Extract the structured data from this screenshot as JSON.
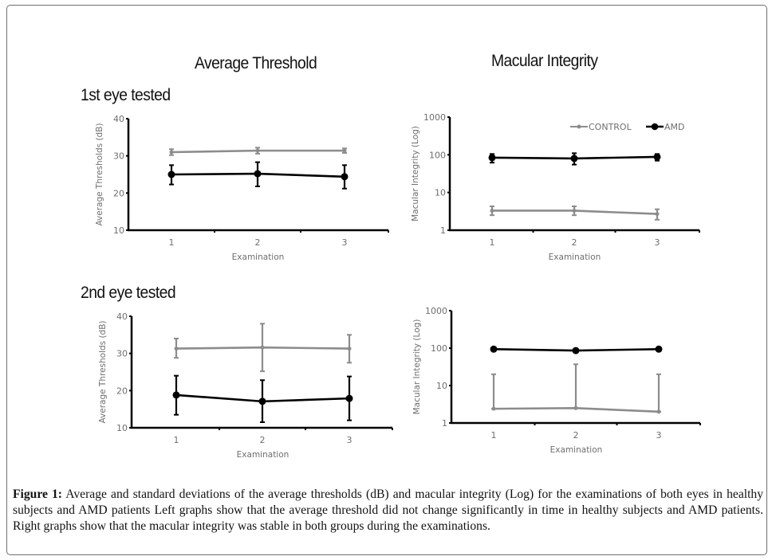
{
  "column_titles": [
    "Average Threshold",
    "Macular Integrity"
  ],
  "row_titles": [
    "1st eye tested",
    "2nd eye tested"
  ],
  "legend": {
    "items": [
      {
        "name": "CONTROL",
        "color": "#8c8c8c"
      },
      {
        "name": "AMD",
        "color": "#000000"
      }
    ]
  },
  "caption": {
    "label": "Figure 1:",
    "text": " Average and standard deviations of the average thresholds (dB) and macular integrity (Log) for the examinations of both eyes in healthy subjects and AMD patients Left graphs show that the average threshold did not change significantly in time in healthy subjects and AMD patients. Right graphs show that the macular integrity was stable in both groups during the examinations."
  },
  "chart_data": [
    {
      "id": "threshold-eye1",
      "type": "line",
      "title": "Average Threshold – 1st eye tested",
      "xlabel": "Examination",
      "ylabel": "Average Thresholds (dB)",
      "x": [
        1,
        2,
        3
      ],
      "xticks": [
        "1",
        "2",
        "3"
      ],
      "yscale": "linear",
      "ylim": [
        10,
        40
      ],
      "yticks": [
        "10",
        "20",
        "30",
        "40"
      ],
      "grid": false,
      "series": [
        {
          "name": "CONTROL",
          "color": "#8c8c8c",
          "values": [
            31.0,
            31.4,
            31.4
          ],
          "err_low": [
            30.2,
            30.6,
            30.8
          ],
          "err_high": [
            31.8,
            32.2,
            32.0
          ]
        },
        {
          "name": "AMD",
          "color": "#000000",
          "values": [
            25.0,
            25.2,
            24.4
          ],
          "err_low": [
            22.3,
            21.8,
            21.2
          ],
          "err_high": [
            27.5,
            28.3,
            27.5
          ]
        }
      ]
    },
    {
      "id": "integrity-eye1",
      "type": "line",
      "title": "Macular Integrity – 1st eye tested",
      "xlabel": "Examination",
      "ylabel": "Macular Integrity (Log)",
      "x": [
        1,
        2,
        3
      ],
      "xticks": [
        "1",
        "2",
        "3"
      ],
      "yscale": "log",
      "ylim": [
        1,
        1000
      ],
      "yticks": [
        "1",
        "10",
        "100",
        "1000"
      ],
      "grid": false,
      "legend_position": "top-right",
      "series": [
        {
          "name": "CONTROL",
          "color": "#8c8c8c",
          "values": [
            3.3,
            3.3,
            2.7
          ],
          "err_low": [
            2.5,
            2.5,
            1.9
          ],
          "err_high": [
            4.3,
            4.3,
            3.6
          ]
        },
        {
          "name": "AMD",
          "color": "#000000",
          "values": [
            84,
            80,
            88
          ],
          "err_low": [
            62,
            55,
            70
          ],
          "err_high": [
            105,
            110,
            105
          ]
        }
      ]
    },
    {
      "id": "threshold-eye2",
      "type": "line",
      "title": "Average Threshold – 2nd eye tested",
      "xlabel": "Examination",
      "ylabel": "Average Thresholds (dB)",
      "x": [
        1,
        2,
        3
      ],
      "xticks": [
        "1",
        "2",
        "3"
      ],
      "yscale": "linear",
      "ylim": [
        10,
        40
      ],
      "yticks": [
        "10",
        "20",
        "30",
        "40"
      ],
      "grid": false,
      "series": [
        {
          "name": "CONTROL",
          "color": "#8c8c8c",
          "values": [
            31.3,
            31.6,
            31.3
          ],
          "err_low": [
            28.8,
            25.2,
            27.5
          ],
          "err_high": [
            34.0,
            38.0,
            35.0
          ]
        },
        {
          "name": "AMD",
          "color": "#000000",
          "values": [
            18.8,
            17.1,
            17.9
          ],
          "err_low": [
            13.5,
            11.5,
            12.0
          ],
          "err_high": [
            24.0,
            22.8,
            23.8
          ]
        }
      ]
    },
    {
      "id": "integrity-eye2",
      "type": "line",
      "title": "Macular Integrity – 2nd eye tested",
      "xlabel": "Examination",
      "ylabel": "Macular Integrity (Log)",
      "x": [
        1,
        2,
        3
      ],
      "xticks": [
        "1",
        "2",
        "3"
      ],
      "yscale": "log",
      "ylim": [
        1,
        1000
      ],
      "yticks": [
        "1",
        "10",
        "100",
        "1000"
      ],
      "grid": false,
      "series": [
        {
          "name": "CONTROL",
          "color": "#8c8c8c",
          "values": [
            2.4,
            2.5,
            2.0
          ],
          "err_low": [
            2.4,
            2.5,
            2.0
          ],
          "err_high": [
            20,
            37,
            20
          ]
        },
        {
          "name": "AMD",
          "color": "#000000",
          "values": [
            94,
            86,
            94
          ],
          "err_low": [
            94,
            86,
            94
          ],
          "err_high": [
            94,
            86,
            94
          ]
        }
      ]
    }
  ]
}
